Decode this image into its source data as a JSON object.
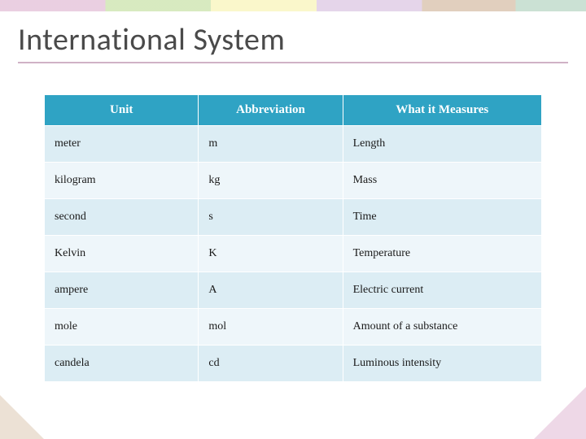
{
  "title": "International System",
  "table": {
    "type": "table",
    "header_bg": "#2fa3c4",
    "header_fg": "#ffffff",
    "row_odd_bg": "#dcedf4",
    "row_even_bg": "#eef6fa",
    "border_color": "#ffffff",
    "header_fontsize": 15,
    "cell_fontsize": 14,
    "col_widths_pct": [
      31,
      29,
      40
    ],
    "columns": [
      "Unit",
      "Abbreviation",
      "What it Measures"
    ],
    "rows": [
      [
        "meter",
        "m",
        "Length"
      ],
      [
        "kilogram",
        "kg",
        "Mass"
      ],
      [
        "second",
        "s",
        "Time"
      ],
      [
        "Kelvin",
        "K",
        "Temperature"
      ],
      [
        "ampere",
        "A",
        "Electric current"
      ],
      [
        "mole",
        "mol",
        "Amount of a substance"
      ],
      [
        "candela",
        "cd",
        "Luminous intensity"
      ]
    ]
  },
  "decor": {
    "top_stripe_colors": [
      "#d9a8c9",
      "#b7d88c",
      "#f5f0a0",
      "#d0b3d9",
      "#c8a888",
      "#a0c8b0"
    ],
    "title_underline_color": "#b07fa0",
    "corner_bl_color": "rgba(200,168,136,0.35)",
    "corner_br_color": "rgba(217,168,201,0.45)"
  }
}
